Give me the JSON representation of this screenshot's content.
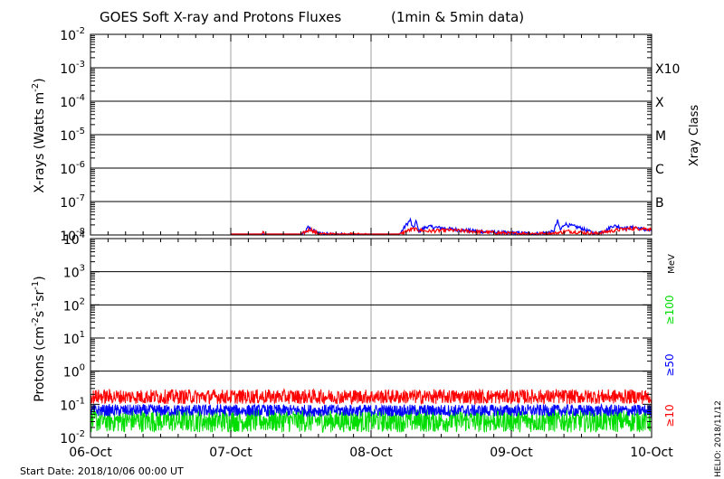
{
  "chart_data": [
    {
      "type": "line",
      "title": "GOES Soft X-ray and Protons Fluxes",
      "title_note": "(1min & 5min data)",
      "ylabel": "X-rays (Watts m",
      "ylabel_sup": "-2",
      "ylabel_close": ")",
      "yscale": "log",
      "ylim": [
        1e-08,
        0.01
      ],
      "yticks": [
        {
          "base": "10",
          "exp": "-2",
          "value": 0.01
        },
        {
          "base": "10",
          "exp": "-3",
          "value": 0.001
        },
        {
          "base": "10",
          "exp": "-4",
          "value": 0.0001
        },
        {
          "base": "10",
          "exp": "-5",
          "value": 1e-05
        },
        {
          "base": "10",
          "exp": "-6",
          "value": 1e-06
        },
        {
          "base": "10",
          "exp": "-7",
          "value": 1e-07
        },
        {
          "base": "10",
          "exp": "-8",
          "value": 1e-08
        }
      ],
      "right_label": "Xray Class",
      "class_labels": [
        {
          "label": "X10",
          "value": 0.001
        },
        {
          "label": "X",
          "value": 0.0001
        },
        {
          "label": "M",
          "value": 1e-05
        },
        {
          "label": "C",
          "value": 1e-06
        },
        {
          "label": "B",
          "value": 1e-07
        }
      ],
      "series": [
        {
          "color": "#0000ff",
          "points": [
            [
              1.0,
              1e-08
            ],
            [
              1.5,
              1e-08
            ],
            [
              1.53,
              1.2e-08
            ],
            [
              1.55,
              1.7e-08
            ],
            [
              1.57,
              1.5e-08
            ],
            [
              1.6,
              1.3e-08
            ],
            [
              1.63,
              1.1e-08
            ],
            [
              1.7,
              1.05e-08
            ],
            [
              2.0,
              1e-08
            ],
            [
              2.2,
              1e-08
            ],
            [
              2.25,
              2e-08
            ],
            [
              2.28,
              2.8e-08
            ],
            [
              2.3,
              1.5e-08
            ],
            [
              2.32,
              2.6e-08
            ],
            [
              2.34,
              1.3e-08
            ],
            [
              2.4,
              1.8e-08
            ],
            [
              2.45,
              1.7e-08
            ],
            [
              2.52,
              1.6e-08
            ],
            [
              2.58,
              1.5e-08
            ],
            [
              2.65,
              1.4e-08
            ],
            [
              2.75,
              1.3e-08
            ],
            [
              2.9,
              1.2e-08
            ],
            [
              3.0,
              1.15e-08
            ],
            [
              3.2,
              1.1e-08
            ],
            [
              3.3,
              1.25e-08
            ],
            [
              3.33,
              2.6e-08
            ],
            [
              3.35,
              1.4e-08
            ],
            [
              3.38,
              2.2e-08
            ],
            [
              3.4,
              2e-08
            ],
            [
              3.45,
              1.8e-08
            ],
            [
              3.5,
              1.6e-08
            ],
            [
              3.55,
              1.3e-08
            ],
            [
              3.6,
              1.1e-08
            ],
            [
              3.68,
              1.4e-08
            ],
            [
              3.72,
              1.9e-08
            ],
            [
              3.76,
              1.8e-08
            ],
            [
              3.82,
              1.6e-08
            ],
            [
              3.88,
              1.7e-08
            ],
            [
              3.94,
              1.5e-08
            ],
            [
              4.0,
              1.3e-08
            ]
          ]
        },
        {
          "color": "#ff0000",
          "points": [
            [
              1.0,
              1e-08
            ],
            [
              1.22,
              1e-08
            ],
            [
              1.23,
              1.3e-08
            ],
            [
              1.24,
              1e-08
            ],
            [
              1.5,
              1e-08
            ],
            [
              1.54,
              1.3e-08
            ],
            [
              1.57,
              1.5e-08
            ],
            [
              1.6,
              1.2e-08
            ],
            [
              1.65,
              1.05e-08
            ],
            [
              2.2,
              1e-08
            ],
            [
              2.25,
              1.3e-08
            ],
            [
              2.3,
              1.5e-08
            ],
            [
              2.4,
              1.3e-08
            ],
            [
              2.55,
              1.4e-08
            ],
            [
              2.7,
              1.3e-08
            ],
            [
              2.85,
              1.2e-08
            ],
            [
              3.0,
              1.1e-08
            ],
            [
              3.3,
              1.1e-08
            ],
            [
              3.4,
              1.3e-08
            ],
            [
              3.5,
              1.2e-08
            ],
            [
              3.6,
              1.1e-08
            ],
            [
              3.7,
              1.3e-08
            ],
            [
              3.8,
              1.5e-08
            ],
            [
              3.9,
              1.6e-08
            ],
            [
              4.0,
              1.5e-08
            ]
          ]
        }
      ]
    },
    {
      "type": "line",
      "ylabel": "Protons (cm",
      "ylabel_sup1": "-2",
      "ylabel_mid": "s",
      "ylabel_sup2": "-1",
      "ylabel_mid2": "sr",
      "ylabel_sup3": "-1",
      "ylabel_close": ")",
      "yscale": "log",
      "ylim": [
        0.01,
        10000
      ],
      "yticks": [
        {
          "base": "10",
          "exp": "4",
          "value": 10000.0
        },
        {
          "base": "10",
          "exp": "3",
          "value": 1000.0
        },
        {
          "base": "10",
          "exp": "2",
          "value": 100.0
        },
        {
          "base": "10",
          "exp": "1",
          "value": 10.0
        },
        {
          "base": "10",
          "exp": "0",
          "value": 1.0
        },
        {
          "base": "10",
          "exp": "-1",
          "value": 0.1
        },
        {
          "base": "10",
          "exp": "-2",
          "value": 0.01
        }
      ],
      "threshold": 10,
      "unit_label": "MeV",
      "series": [
        {
          "name": "≥100",
          "color": "#00dd00",
          "mean": 0.032,
          "spread": 0.35
        },
        {
          "name": "≥50",
          "color": "#0000ff",
          "mean": 0.065,
          "spread": 0.18
        },
        {
          "name": "≥10",
          "color": "#ff0000",
          "mean": 0.17,
          "spread": 0.22
        }
      ]
    }
  ],
  "x_axis": {
    "categories": [
      "06-Oct",
      "07-Oct",
      "08-Oct",
      "09-Oct",
      "10-Oct"
    ],
    "xlim": [
      0,
      4
    ]
  },
  "footer": {
    "start_date": "Start Date: 2018/10/06 00:00 UT",
    "credit": "HELIO: 2018/11/12"
  }
}
